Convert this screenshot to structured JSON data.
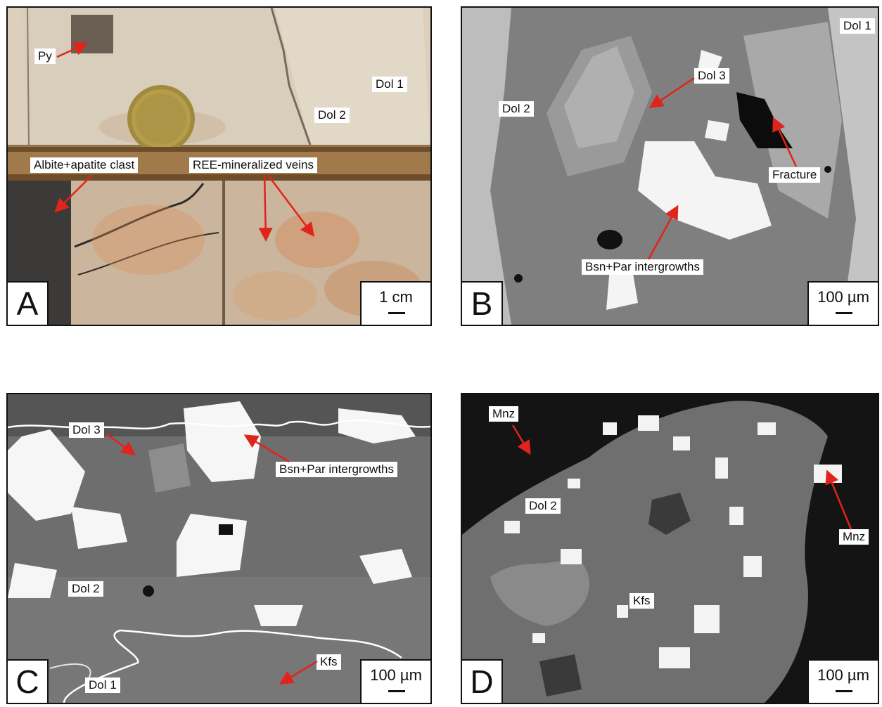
{
  "panels": {
    "a": {
      "letter": "A",
      "scale": "1 cm",
      "labels": {
        "py": "Py",
        "dol1": "Dol 1",
        "dol2": "Dol 2",
        "albite": "Albite+apatite clast",
        "ree": "REE-mineralized veins"
      }
    },
    "b": {
      "letter": "B",
      "scale": "100 µm",
      "labels": {
        "dol1": "Dol 1",
        "dol2": "Dol 2",
        "dol3": "Dol 3",
        "fracture": "Fracture",
        "bsn": "Bsn+Par intergrowths"
      }
    },
    "c": {
      "letter": "C",
      "scale": "100 µm",
      "labels": {
        "dol3": "Dol 3",
        "bsn": "Bsn+Par intergrowths",
        "dol2": "Dol 2",
        "dol1": "Dol 1",
        "kfs": "Kfs"
      }
    },
    "d": {
      "letter": "D",
      "scale": "100 µm",
      "labels": {
        "mnz_top": "Mnz",
        "dol2": "Dol 2",
        "mnz_right": "Mnz",
        "kfs": "Kfs"
      }
    }
  },
  "colors": {
    "arrow": "#e0241b",
    "outline": "#111111"
  }
}
